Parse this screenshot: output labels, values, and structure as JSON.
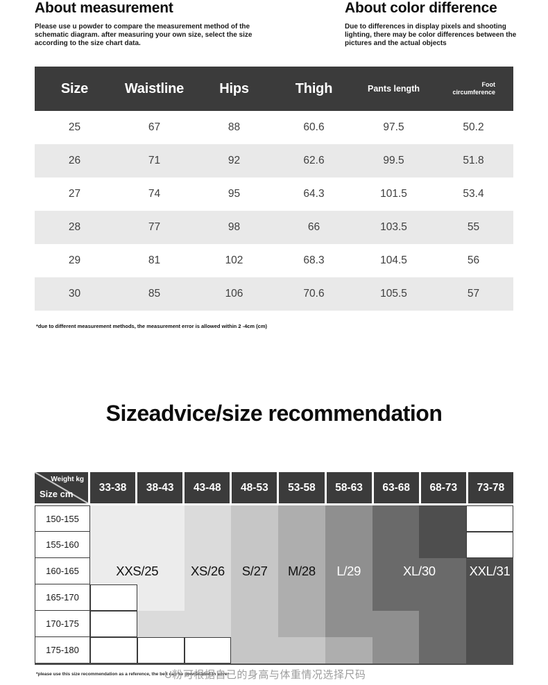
{
  "about_measurement": {
    "title": "About measurement",
    "body": "Please use u powder to compare the measurement method of the schematic diagram. after measuring your own size, select the size according to the size chart data."
  },
  "about_color": {
    "title": "About color difference",
    "body": "Due to differences in display pixels and shooting lighting, there may be color differences between the pictures and the actual objects"
  },
  "measurement_table": {
    "header_bg": "#3b3b3b",
    "row_alt_bg": "#e9e9e9",
    "columns": [
      "Size",
      "Waistline",
      "Hips",
      "Thigh",
      "Pants length",
      "Foot\ncircumference"
    ],
    "rows": [
      [
        "25",
        "67",
        "88",
        "60.6",
        "97.5",
        "50.2"
      ],
      [
        "26",
        "71",
        "92",
        "62.6",
        "99.5",
        "51.8"
      ],
      [
        "27",
        "74",
        "95",
        "64.3",
        "101.5",
        "53.4"
      ],
      [
        "28",
        "77",
        "98",
        "66",
        "103.5",
        "55"
      ],
      [
        "29",
        "81",
        "102",
        "68.3",
        "104.5",
        "56"
      ],
      [
        "30",
        "85",
        "106",
        "70.6",
        "105.5",
        "57"
      ]
    ],
    "footnote": "*due to different measurement methods, the measurement error is allowed within 2 -4cm (cm)"
  },
  "size_advice": {
    "title": "Sizeadvice/size recommendation",
    "corner": {
      "top_label": "Weight kg",
      "bottom_label": "Size cm"
    },
    "weight_columns": [
      "33-38",
      "38-43",
      "43-48",
      "48-53",
      "53-58",
      "58-63",
      "63-68",
      "68-73",
      "73-78"
    ],
    "height_rows": [
      "150-155",
      "155-160",
      "160-165",
      "165-170",
      "170-175",
      "175-180"
    ],
    "shades": {
      "W": "#ffffff",
      "c1": "#ececec",
      "c2": "#dbdbdb",
      "c3": "#c6c6c6",
      "c4": "#aeaeae",
      "c5": "#8f8f8f",
      "c6": "#6a6a6a",
      "c7": "#4e4e4e"
    },
    "cell_matrix": [
      [
        "c1",
        "c1",
        "c2",
        "c3",
        "c4",
        "c5",
        "c6",
        "c7",
        "W"
      ],
      [
        "c1",
        "c1",
        "c2",
        "c3",
        "c4",
        "c5",
        "c6",
        "c7",
        "W"
      ],
      [
        "c1",
        "c1",
        "c2",
        "c3",
        "c4",
        "c5",
        "c6",
        "c6",
        "c7"
      ],
      [
        "W",
        "c1",
        "c2",
        "c3",
        "c4",
        "c5",
        "c6",
        "c6",
        "c7"
      ],
      [
        "W",
        "c2",
        "c2",
        "c3",
        "c4",
        "c5",
        "c5",
        "c6",
        "c7"
      ],
      [
        "W",
        "W",
        "W",
        "c3",
        "c3",
        "c4",
        "c5",
        "c6",
        "c7"
      ]
    ],
    "labels": [
      {
        "text": "XXS/25",
        "col_start": 0,
        "col_span": 2,
        "color": "#111111"
      },
      {
        "text": "XS/26",
        "col_start": 2,
        "col_span": 1,
        "color": "#111111"
      },
      {
        "text": "S/27",
        "col_start": 3,
        "col_span": 1,
        "color": "#111111"
      },
      {
        "text": "M/28",
        "col_start": 4,
        "col_span": 1,
        "color": "#111111"
      },
      {
        "text": "L/29",
        "col_start": 5,
        "col_span": 1,
        "color": "#ffffff"
      },
      {
        "text": "XL/30",
        "col_start": 6,
        "col_span": 2,
        "color": "#ffffff"
      },
      {
        "text": "XXL/31",
        "col_start": 8,
        "col_span": 1,
        "color": "#ffffff"
      }
    ],
    "footnote_left": "*please use this size recommendation as a reference, the belt can be downloaded in silver",
    "footnote_center": "U粉可根据自己的身高与体重情况选择尺码"
  }
}
